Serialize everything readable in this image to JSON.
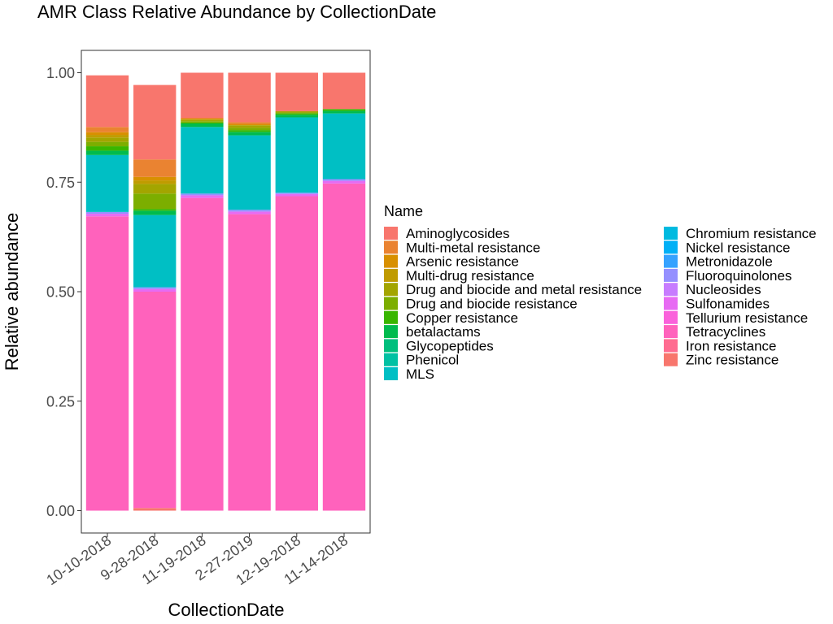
{
  "chart_data": {
    "type": "bar",
    "stacked": true,
    "title": "AMR Class Relative Abundance by CollectionDate",
    "xlabel": "CollectionDate",
    "ylabel": "Relative abundance",
    "ylim": [
      0,
      1
    ],
    "yticks": [
      "0.00",
      "0.25",
      "0.50",
      "0.75",
      "1.00"
    ],
    "grid": false,
    "legend_position": "right",
    "legend_title": "Name",
    "categories": [
      "10-10-2018",
      "9-28-2018",
      "11-19-2018",
      "2-27-2019",
      "12-19-2018",
      "11-14-2018"
    ],
    "series": [
      {
        "name": "Aminoglycosides",
        "color": "#F8766D",
        "values": [
          0.118,
          0.17,
          0.103,
          0.113,
          0.088,
          0.083
        ]
      },
      {
        "name": "Multi-metal resistance",
        "color": "#EA8331",
        "values": [
          0.012,
          0.04,
          0.002,
          0.004,
          0.0,
          0.0
        ]
      },
      {
        "name": "Arsenic resistance",
        "color": "#D89000",
        "values": [
          0.006,
          0.008,
          0.002,
          0.003,
          0.0,
          0.0
        ]
      },
      {
        "name": "Multi-drug resistance",
        "color": "#C09B00",
        "values": [
          0.006,
          0.008,
          0.0,
          0.0,
          0.0,
          0.0
        ]
      },
      {
        "name": "Drug and biocide and metal resistance",
        "color": "#A3A500",
        "values": [
          0.01,
          0.022,
          0.004,
          0.006,
          0.003,
          0.0
        ]
      },
      {
        "name": "Drug and biocide resistance",
        "color": "#7CAE00",
        "values": [
          0.01,
          0.035,
          0.003,
          0.005,
          0.002,
          0.0
        ]
      },
      {
        "name": "Copper resistance",
        "color": "#39B600",
        "values": [
          0.01,
          0.004,
          0.002,
          0.004,
          0.003,
          0.004
        ]
      },
      {
        "name": "betalactams",
        "color": "#00BB4E",
        "values": [
          0.01,
          0.01,
          0.008,
          0.008,
          0.006,
          0.006
        ]
      },
      {
        "name": "Glycopeptides",
        "color": "#00BF7D",
        "values": [
          0.0,
          0.0,
          0.0,
          0.0,
          0.0,
          0.0
        ]
      },
      {
        "name": "Phenicol",
        "color": "#00C1A3",
        "values": [
          0.0,
          0.0,
          0.0,
          0.0,
          0.0,
          0.0
        ]
      },
      {
        "name": "MLS",
        "color": "#00BFC4",
        "values": [
          0.13,
          0.165,
          0.152,
          0.17,
          0.172,
          0.15
        ]
      },
      {
        "name": "Chromium resistance",
        "color": "#00BAE0",
        "values": [
          0.0,
          0.0,
          0.0,
          0.0,
          0.0,
          0.0
        ]
      },
      {
        "name": "Nickel resistance",
        "color": "#00B0F6",
        "values": [
          0.0,
          0.0,
          0.0,
          0.0,
          0.0,
          0.0
        ]
      },
      {
        "name": "Metronidazole",
        "color": "#35A2FF",
        "values": [
          0.0,
          0.0,
          0.0,
          0.0,
          0.0,
          0.0
        ]
      },
      {
        "name": "Fluoroquinolones",
        "color": "#9590FF",
        "values": [
          0.004,
          0.004,
          0.004,
          0.004,
          0.003,
          0.004
        ]
      },
      {
        "name": "Nucleosides",
        "color": "#C77CFF",
        "values": [
          0.0,
          0.0,
          0.0,
          0.0,
          0.0,
          0.0
        ]
      },
      {
        "name": "Sulfonamides",
        "color": "#E76BF3",
        "values": [
          0.006,
          0.006,
          0.006,
          0.006,
          0.005,
          0.006
        ]
      },
      {
        "name": "Tellurium resistance",
        "color": "#FA62DB",
        "values": [
          0.0,
          0.0,
          0.0,
          0.0,
          0.0,
          0.0
        ]
      },
      {
        "name": "Tetracyclines",
        "color": "#FF62BC",
        "values": [
          0.672,
          0.494,
          0.714,
          0.677,
          0.718,
          0.747
        ]
      },
      {
        "name": "Iron resistance",
        "color": "#FF6C91",
        "values": [
          0.0,
          0.0,
          0.0,
          0.0,
          0.0,
          0.0
        ]
      },
      {
        "name": "Zinc resistance",
        "color": "#F8766D",
        "values": [
          0.0,
          0.006,
          0.0,
          0.0,
          0.0,
          0.0
        ]
      }
    ]
  }
}
